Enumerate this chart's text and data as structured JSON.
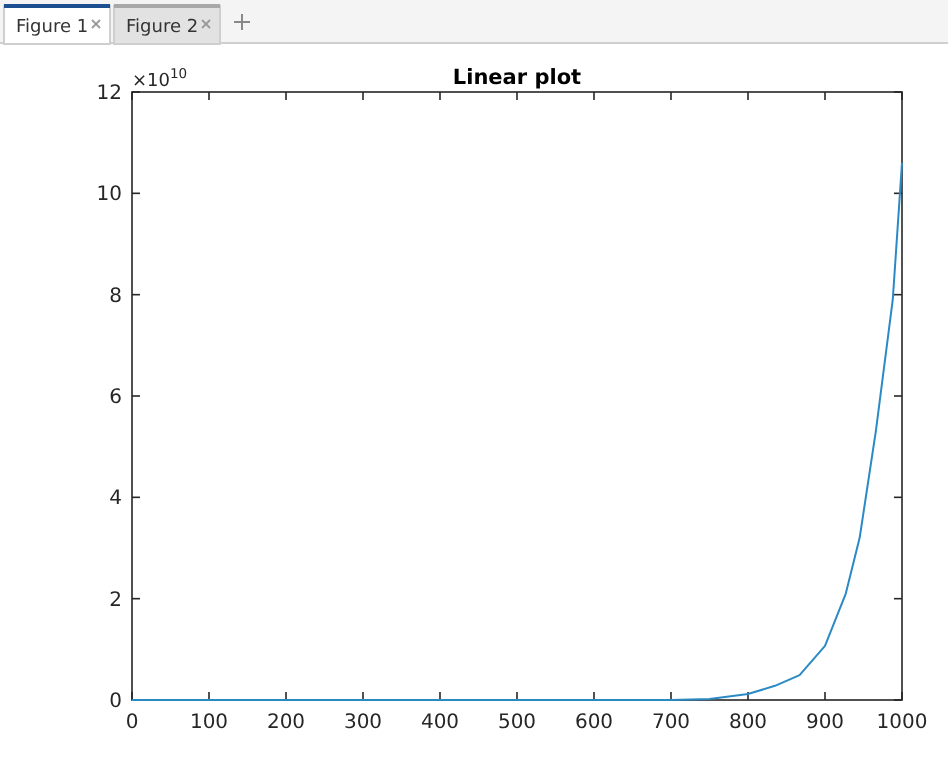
{
  "chart_data": {
    "type": "line",
    "title": "Linear plot",
    "x": [
      0,
      700,
      750,
      800,
      835,
      867,
      900,
      927,
      945,
      966,
      988,
      1000
    ],
    "series": [
      {
        "color": "#2a8ac4",
        "values": [
          0,
          0,
          0.02,
          0.12,
          0.28,
          0.49,
          1.07,
          2.1,
          3.2,
          5.3,
          7.9,
          10.6
        ]
      }
    ],
    "xlim": [
      0,
      1000
    ],
    "xticks": [
      0,
      100,
      200,
      300,
      400,
      500,
      600,
      700,
      800,
      900,
      1000
    ],
    "ylim": [
      0,
      12
    ],
    "yticks": [
      0,
      2,
      4,
      6,
      8,
      10,
      12
    ],
    "annotations": [
      "×10$^{10}$",
      "Figure 1",
      "Figure 2"
    ],
    "grid": false
  }
}
